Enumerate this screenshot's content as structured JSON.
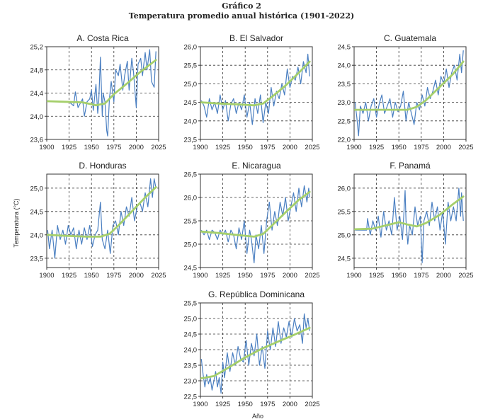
{
  "figure": {
    "label": "Gráfico 2",
    "title": "Temperatura promedio anual histórica (1901-2022)",
    "ylabel": "Temperatura (°C)",
    "xlabel": "Año",
    "colors": {
      "annual": "#4a7fc1",
      "trend": "#a5cf6b",
      "grid": "#333333"
    }
  },
  "chart_data": [
    {
      "type": "line",
      "title": "A. Costa Rica",
      "xlim": [
        1900,
        2025
      ],
      "ylim": [
        23.6,
        25.2
      ],
      "xticks": [
        "1900",
        "1925",
        "1950",
        "1975",
        "2000",
        "2025"
      ],
      "yticks": [
        "23,6",
        "24,0",
        "24,4",
        "24,8",
        "25,2"
      ],
      "trend": {
        "x": [
          1901,
          1920,
          1940,
          1955,
          1965,
          1975,
          1990,
          2005,
          2022
        ],
        "y": [
          24.26,
          24.25,
          24.24,
          24.19,
          24.22,
          24.38,
          24.57,
          24.77,
          24.97
        ]
      },
      "annual": {
        "x": [
          1901,
          1905,
          1910,
          1915,
          1920,
          1925,
          1930,
          1932,
          1935,
          1940,
          1942,
          1945,
          1948,
          1950,
          1952,
          1955,
          1957,
          1958,
          1960,
          1962,
          1963,
          1965,
          1967,
          1968,
          1970,
          1972,
          1975,
          1977,
          1980,
          1982,
          1985,
          1987,
          1990,
          1992,
          1995,
          1997,
          2000,
          2002,
          2005,
          2007,
          2010,
          2012,
          2015,
          2017,
          2020,
          2022
        ],
        "y": [
          24.26,
          24.25,
          24.25,
          24.25,
          24.25,
          24.25,
          24.18,
          24.42,
          24.15,
          24.3,
          24.0,
          24.25,
          24.3,
          24.45,
          24.1,
          24.55,
          24.05,
          24.22,
          25.02,
          24.0,
          24.4,
          24.25,
          23.75,
          23.66,
          24.3,
          24.6,
          24.25,
          24.8,
          24.7,
          24.9,
          24.45,
          24.7,
          24.95,
          24.45,
          25.0,
          24.75,
          24.15,
          24.9,
          25.0,
          24.7,
          25.1,
          24.8,
          25.15,
          24.6,
          24.5,
          25.12
        ]
      }
    },
    {
      "type": "line",
      "title": "B. El Salvador",
      "xlim": [
        1900,
        2025
      ],
      "ylim": [
        23.5,
        26.0
      ],
      "xticks": [
        "1900",
        "1925",
        "1950",
        "1975",
        "2000",
        "2025"
      ],
      "yticks": [
        "23,5",
        "24,0",
        "24,5",
        "25,0",
        "25,5",
        "26,0"
      ],
      "trend": {
        "x": [
          1901,
          1920,
          1945,
          1960,
          1970,
          1980,
          1995,
          2010,
          2022
        ],
        "y": [
          24.5,
          24.47,
          24.44,
          24.42,
          24.47,
          24.65,
          24.95,
          25.3,
          25.6
        ]
      },
      "annual": {
        "x": [
          1901,
          1904,
          1907,
          1910,
          1913,
          1916,
          1919,
          1922,
          1925,
          1928,
          1931,
          1934,
          1937,
          1940,
          1943,
          1946,
          1949,
          1952,
          1955,
          1958,
          1961,
          1964,
          1967,
          1970,
          1973,
          1976,
          1979,
          1982,
          1985,
          1988,
          1991,
          1994,
          1997,
          2000,
          2003,
          2006,
          2009,
          2012,
          2015,
          2018,
          2020,
          2022
        ],
        "y": [
          24.55,
          24.4,
          24.1,
          24.6,
          24.3,
          24.5,
          24.2,
          24.7,
          24.3,
          24.55,
          24.0,
          24.45,
          24.6,
          24.2,
          24.5,
          24.3,
          24.7,
          24.1,
          24.5,
          23.9,
          24.6,
          24.2,
          24.7,
          23.95,
          24.5,
          24.2,
          24.9,
          24.4,
          24.8,
          24.6,
          25.0,
          24.7,
          25.4,
          24.9,
          25.2,
          25.1,
          25.45,
          25.0,
          25.6,
          25.3,
          25.8,
          25.2
        ]
      }
    },
    {
      "type": "line",
      "title": "C. Guatemala",
      "xlim": [
        1900,
        2025
      ],
      "ylim": [
        22.0,
        24.5
      ],
      "xticks": [
        "1900",
        "1925",
        "1950",
        "1975",
        "2000",
        "2025"
      ],
      "yticks": [
        "22,0",
        "22,5",
        "23,0",
        "23,5",
        "24,0",
        "24,5"
      ],
      "trend": {
        "x": [
          1901,
          1920,
          1945,
          1960,
          1970,
          1980,
          1995,
          2010,
          2022
        ],
        "y": [
          22.8,
          22.8,
          22.8,
          22.8,
          22.88,
          23.05,
          23.4,
          23.75,
          24.1
        ]
      },
      "annual": {
        "x": [
          1901,
          1903,
          1905,
          1907,
          1910,
          1913,
          1916,
          1919,
          1922,
          1925,
          1928,
          1931,
          1934,
          1937,
          1940,
          1943,
          1946,
          1949,
          1952,
          1955,
          1958,
          1961,
          1964,
          1967,
          1970,
          1973,
          1976,
          1979,
          1982,
          1985,
          1988,
          1991,
          1994,
          1997,
          2000,
          2003,
          2006,
          2009,
          2012,
          2015,
          2018,
          2020,
          2022
        ],
        "y": [
          23.0,
          22.6,
          22.1,
          22.9,
          22.7,
          23.0,
          22.5,
          22.9,
          23.1,
          22.6,
          22.95,
          23.2,
          22.7,
          22.9,
          23.1,
          22.6,
          23.0,
          22.75,
          22.9,
          23.3,
          22.5,
          23.0,
          22.7,
          22.4,
          23.0,
          22.8,
          23.2,
          22.9,
          23.4,
          23.1,
          23.3,
          23.6,
          23.2,
          23.7,
          23.5,
          23.9,
          23.4,
          23.8,
          24.0,
          23.6,
          24.3,
          23.8,
          24.4
        ]
      }
    },
    {
      "type": "line",
      "title": "D. Honduras",
      "xlim": [
        1900,
        2025
      ],
      "ylim": [
        23.3,
        25.3
      ],
      "xticks": [
        "1900",
        "1925",
        "1950",
        "1975",
        "2000",
        "2025"
      ],
      "yticks": [
        "23,5",
        "24,0",
        "24,5",
        "25,0"
      ],
      "trend": {
        "x": [
          1901,
          1920,
          1945,
          1960,
          1970,
          1980,
          1995,
          2010,
          2022
        ],
        "y": [
          24.0,
          23.98,
          23.96,
          23.96,
          24.02,
          24.2,
          24.5,
          24.8,
          25.02
        ]
      },
      "annual": {
        "x": [
          1901,
          1903,
          1906,
          1909,
          1912,
          1915,
          1918,
          1921,
          1924,
          1927,
          1930,
          1933,
          1936,
          1939,
          1942,
          1945,
          1948,
          1951,
          1954,
          1957,
          1960,
          1962,
          1965,
          1968,
          1971,
          1974,
          1977,
          1980,
          1983,
          1986,
          1989,
          1992,
          1995,
          1998,
          2001,
          2004,
          2007,
          2010,
          2013,
          2016,
          2018,
          2020,
          2022
        ],
        "y": [
          24.1,
          23.7,
          24.1,
          23.5,
          24.2,
          23.9,
          24.1,
          23.8,
          24.2,
          24.0,
          24.15,
          23.7,
          24.1,
          23.8,
          24.15,
          23.9,
          24.2,
          23.75,
          24.0,
          24.1,
          24.7,
          23.9,
          23.7,
          24.1,
          23.6,
          24.2,
          24.3,
          24.0,
          24.5,
          24.2,
          24.6,
          24.4,
          24.8,
          24.3,
          24.6,
          24.7,
          24.5,
          24.9,
          24.6,
          25.2,
          24.8,
          25.2,
          25.0
        ]
      }
    },
    {
      "type": "line",
      "title": "E. Nicaragua",
      "xlim": [
        1900,
        2025
      ],
      "ylim": [
        24.5,
        26.5
      ],
      "xticks": [
        "1900",
        "1925",
        "1950",
        "1975",
        "2000",
        "2025"
      ],
      "yticks": [
        "24,5",
        "25,0",
        "25,5",
        "26,0",
        "26,5"
      ],
      "trend": {
        "x": [
          1901,
          1920,
          1945,
          1960,
          1970,
          1980,
          1995,
          2010,
          2022
        ],
        "y": [
          25.27,
          25.24,
          25.19,
          25.16,
          25.22,
          25.4,
          25.68,
          25.95,
          26.12
        ]
      },
      "annual": {
        "x": [
          1901,
          1904,
          1907,
          1910,
          1913,
          1916,
          1919,
          1922,
          1925,
          1928,
          1931,
          1934,
          1937,
          1940,
          1943,
          1946,
          1949,
          1952,
          1955,
          1957,
          1960,
          1962,
          1965,
          1968,
          1971,
          1974,
          1977,
          1980,
          1983,
          1986,
          1989,
          1992,
          1995,
          1998,
          2001,
          2004,
          2007,
          2010,
          2013,
          2016,
          2019,
          2021,
          2022
        ],
        "y": [
          25.3,
          25.2,
          25.3,
          25.1,
          25.3,
          25.25,
          25.1,
          25.3,
          25.2,
          25.3,
          25.05,
          25.3,
          25.2,
          24.9,
          25.35,
          25.1,
          25.5,
          24.8,
          25.3,
          25.1,
          24.6,
          25.2,
          24.9,
          25.4,
          24.8,
          25.5,
          25.9,
          25.3,
          25.7,
          25.4,
          25.9,
          25.6,
          26.0,
          25.5,
          25.8,
          26.1,
          25.7,
          26.2,
          25.8,
          26.25,
          25.9,
          26.2,
          26.0
        ]
      }
    },
    {
      "type": "line",
      "title": "F. Panamá",
      "xlim": [
        1900,
        2025
      ],
      "ylim": [
        24.3,
        26.3
      ],
      "xticks": [
        "1900",
        "1925",
        "1950",
        "1975",
        "2000",
        "2025"
      ],
      "yticks": [
        "24,5",
        "25,0",
        "25,5",
        "26,0"
      ],
      "trend": {
        "x": [
          1901,
          1920,
          1935,
          1950,
          1960,
          1970,
          1980,
          1995,
          2010,
          2022
        ],
        "y": [
          25.12,
          25.13,
          25.2,
          25.27,
          25.22,
          25.18,
          25.25,
          25.42,
          25.65,
          25.82
        ]
      },
      "annual": {
        "x": [
          1901,
          1905,
          1910,
          1914,
          1915,
          1918,
          1921,
          1924,
          1927,
          1930,
          1933,
          1936,
          1939,
          1942,
          1945,
          1948,
          1951,
          1954,
          1957,
          1958,
          1960,
          1962,
          1965,
          1968,
          1971,
          1974,
          1976,
          1978,
          1981,
          1984,
          1987,
          1990,
          1993,
          1996,
          1999,
          2002,
          2005,
          2008,
          2011,
          2014,
          2017,
          2019,
          2020,
          2022
        ],
        "y": [
          25.1,
          25.1,
          25.1,
          25.1,
          25.35,
          25.0,
          25.3,
          25.1,
          25.4,
          24.95,
          25.5,
          25.1,
          25.3,
          25.0,
          25.8,
          25.1,
          25.4,
          24.9,
          25.95,
          25.3,
          24.8,
          25.2,
          25.0,
          25.6,
          25.2,
          25.4,
          24.4,
          25.3,
          25.5,
          25.2,
          25.7,
          25.3,
          25.6,
          25.1,
          25.5,
          24.8,
          25.7,
          25.3,
          25.6,
          25.3,
          26.0,
          25.4,
          25.9,
          25.3
        ]
      }
    },
    {
      "type": "line",
      "title": "G. República Dominicana",
      "xlim": [
        1900,
        2025
      ],
      "ylim": [
        22.5,
        25.5
      ],
      "xticks": [
        "1900",
        "1925",
        "1950",
        "1975",
        "2000",
        "2025"
      ],
      "yticks": [
        "22,5",
        "23,0",
        "23,5",
        "24,0",
        "24,5",
        "25,0",
        "25,5"
      ],
      "trend": {
        "x": [
          1901,
          1915,
          1930,
          1950,
          1970,
          1990,
          2005,
          2022
        ],
        "y": [
          23.08,
          23.15,
          23.4,
          23.75,
          24.05,
          24.3,
          24.48,
          24.7
        ]
      },
      "annual": {
        "x": [
          1901,
          1903,
          1905,
          1907,
          1909,
          1911,
          1913,
          1915,
          1917,
          1919,
          1921,
          1923,
          1925,
          1927,
          1930,
          1933,
          1936,
          1939,
          1942,
          1945,
          1948,
          1951,
          1954,
          1957,
          1960,
          1963,
          1966,
          1969,
          1972,
          1975,
          1978,
          1981,
          1984,
          1987,
          1990,
          1993,
          1996,
          1999,
          2002,
          2005,
          2008,
          2011,
          2014,
          2016,
          2018,
          2020,
          2022
        ],
        "y": [
          23.7,
          23.2,
          22.8,
          23.2,
          22.9,
          23.1,
          22.7,
          23.0,
          23.3,
          22.8,
          23.1,
          22.6,
          23.6,
          23.1,
          23.9,
          23.3,
          23.9,
          23.5,
          24.1,
          23.7,
          23.6,
          24.3,
          23.5,
          24.2,
          23.8,
          24.5,
          23.5,
          24.1,
          23.4,
          24.6,
          24.0,
          24.7,
          24.1,
          24.9,
          24.2,
          24.7,
          24.4,
          24.9,
          24.4,
          25.0,
          24.6,
          24.8,
          24.2,
          25.15,
          24.7,
          25.0,
          24.6
        ]
      }
    }
  ]
}
